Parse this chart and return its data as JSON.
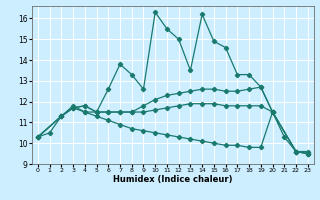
{
  "xlabel": "Humidex (Indice chaleur)",
  "bg_color": "#cceeff",
  "line_color": "#1a7a6e",
  "grid_color": "#ffffff",
  "xlim": [
    -0.5,
    23.5
  ],
  "ylim": [
    9.0,
    16.6
  ],
  "yticks": [
    9,
    10,
    11,
    12,
    13,
    14,
    15,
    16
  ],
  "xticks": [
    0,
    1,
    2,
    3,
    4,
    5,
    6,
    7,
    8,
    9,
    10,
    11,
    12,
    13,
    14,
    15,
    16,
    17,
    18,
    19,
    20,
    21,
    22,
    23
  ],
  "line1_x": [
    0,
    1,
    2,
    3,
    4,
    5,
    6,
    7,
    8,
    9,
    10,
    11,
    12,
    13,
    14,
    15,
    16,
    17,
    18,
    19,
    20,
    21,
    22,
    23
  ],
  "line1_y": [
    10.3,
    10.5,
    11.3,
    11.8,
    11.5,
    11.5,
    12.6,
    13.8,
    13.3,
    12.6,
    16.3,
    15.5,
    15.0,
    13.5,
    16.2,
    14.9,
    14.6,
    13.3,
    13.3,
    12.7,
    11.5,
    10.3,
    9.6,
    9.6
  ],
  "line2_x": [
    0,
    2,
    3,
    4,
    5,
    6,
    7,
    8,
    9,
    10,
    11,
    12,
    13,
    14,
    15,
    16,
    17,
    18,
    19,
    20,
    22,
    23
  ],
  "line2_y": [
    10.3,
    11.3,
    11.7,
    11.8,
    11.5,
    11.5,
    11.5,
    11.5,
    11.8,
    12.1,
    12.3,
    12.4,
    12.5,
    12.6,
    12.6,
    12.5,
    12.5,
    12.6,
    12.7,
    11.5,
    9.6,
    9.5
  ],
  "line3_x": [
    0,
    2,
    3,
    4,
    5,
    6,
    7,
    8,
    9,
    10,
    11,
    12,
    13,
    14,
    15,
    16,
    17,
    18,
    19,
    20,
    22,
    23
  ],
  "line3_y": [
    10.3,
    11.3,
    11.7,
    11.8,
    11.5,
    11.5,
    11.5,
    11.5,
    11.5,
    11.6,
    11.7,
    11.8,
    11.9,
    11.9,
    11.9,
    11.8,
    11.8,
    11.8,
    11.8,
    11.5,
    9.6,
    9.5
  ],
  "line4_x": [
    0,
    2,
    3,
    4,
    5,
    6,
    7,
    8,
    9,
    10,
    11,
    12,
    13,
    14,
    15,
    16,
    17,
    18,
    19,
    20,
    22,
    23
  ],
  "line4_y": [
    10.3,
    11.3,
    11.7,
    11.5,
    11.3,
    11.1,
    10.9,
    10.7,
    10.6,
    10.5,
    10.4,
    10.3,
    10.2,
    10.1,
    10.0,
    9.9,
    9.9,
    9.8,
    9.8,
    11.5,
    9.6,
    9.5
  ]
}
